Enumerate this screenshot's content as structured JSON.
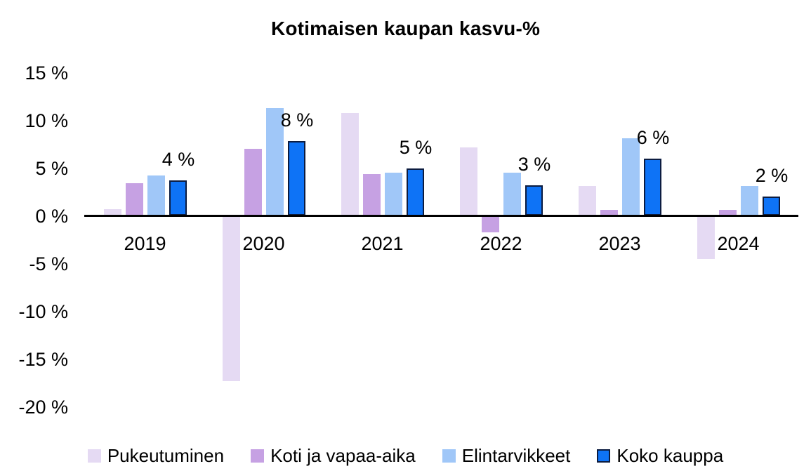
{
  "chart_data": {
    "type": "bar",
    "title": "Kotimaisen kaupan kasvu-%",
    "categories": [
      "2019",
      "2020",
      "2021",
      "2022",
      "2023",
      "2024"
    ],
    "series": [
      {
        "name": "Pukeutuminen",
        "color": "#E5DAF3",
        "values": [
          0.7,
          -17.3,
          10.8,
          7.2,
          3.1,
          -4.5
        ]
      },
      {
        "name": "Koti ja vapaa-aika",
        "color": "#C6A1E3",
        "values": [
          3.4,
          7.0,
          4.4,
          -1.7,
          0.6,
          0.6
        ]
      },
      {
        "name": "Elintarvikkeet",
        "color": "#A0C7F8",
        "values": [
          4.2,
          11.3,
          4.5,
          4.5,
          8.1,
          3.1
        ]
      },
      {
        "name": "Koko kauppa",
        "color": "#0E73F6",
        "border_color": "#0C1C40",
        "values": [
          3.7,
          7.8,
          5.0,
          3.2,
          6.0,
          2.0
        ]
      }
    ],
    "data_labels": {
      "series": "Koko kauppa",
      "labels": [
        "4 %",
        "8 %",
        "5 %",
        "3 %",
        "6 %",
        "2 %"
      ]
    },
    "y_ticks": [
      {
        "label": "15 %",
        "value": 15
      },
      {
        "label": "10 %",
        "value": 10
      },
      {
        "label": "5 %",
        "value": 5
      },
      {
        "label": "0 %",
        "value": 0
      },
      {
        "label": "-5 %",
        "value": -5
      },
      {
        "label": "-10 %",
        "value": -10
      },
      {
        "label": "-15 %",
        "value": -15
      },
      {
        "label": "-20 %",
        "value": -20
      }
    ],
    "ylim": [
      -20,
      15
    ],
    "grid": false,
    "legend_position": "bottom",
    "axis_color": "#000000",
    "background_color": "#ffffff"
  }
}
